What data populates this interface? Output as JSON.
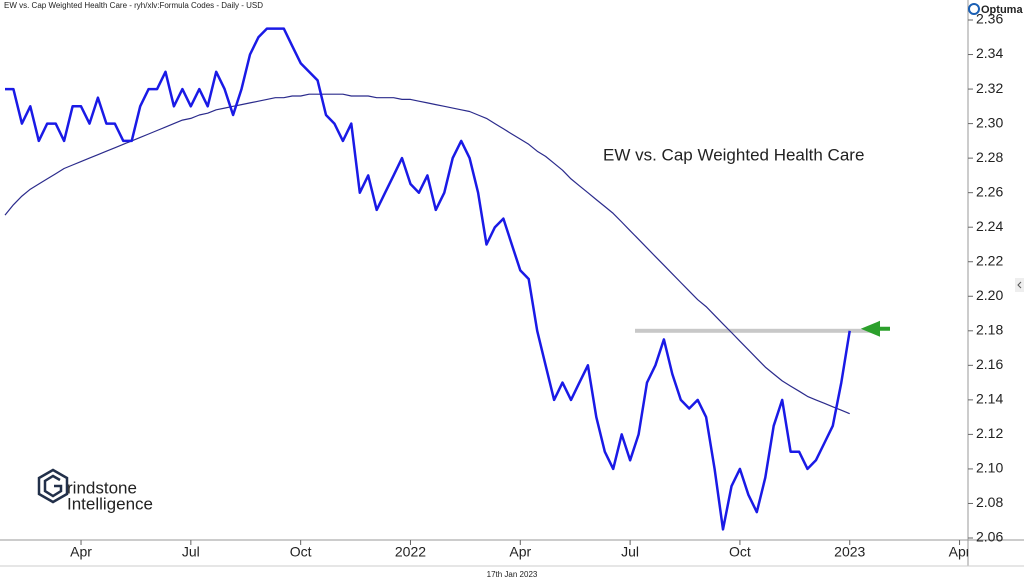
{
  "chart_data": {
    "type": "line",
    "header": "EW vs. Cap Weighted Health Care - ryh/xlv:Formula Codes - Daily - USD",
    "title": "EW vs. Cap Weighted Health Care",
    "footer_date": "17th Jan 2023",
    "brand": "Optuma",
    "watermark": [
      "rindstone",
      "Intelligence"
    ],
    "categories": [
      null,
      null,
      null,
      null,
      null,
      null,
      null,
      null,
      null,
      "Apr",
      null,
      null,
      null,
      null,
      null,
      null,
      null,
      null,
      null,
      null,
      null,
      null,
      "Jul",
      null,
      null,
      null,
      null,
      null,
      null,
      null,
      null,
      null,
      null,
      null,
      null,
      "Oct",
      null,
      null,
      null,
      null,
      null,
      null,
      null,
      null,
      null,
      null,
      null,
      null,
      "2022",
      null,
      null,
      null,
      null,
      null,
      null,
      null,
      null,
      null,
      null,
      null,
      null,
      "Apr",
      null,
      null,
      null,
      null,
      null,
      null,
      null,
      null,
      null,
      null,
      null,
      null,
      "Jul",
      null,
      null,
      null,
      null,
      null,
      null,
      null,
      null,
      null,
      null,
      null,
      null,
      "Oct",
      null,
      null,
      null,
      null,
      null,
      null,
      null,
      null,
      null,
      null,
      null,
      null,
      "2023",
      null,
      null,
      null,
      null,
      null,
      null,
      null,
      null,
      null,
      null,
      null,
      null,
      "Apr",
      null
    ],
    "series": [
      {
        "name": "EW vs. Cap Weighted Health Care",
        "color": "#1a1ae6",
        "values": [
          2.32,
          2.32,
          2.3,
          2.31,
          2.29,
          2.3,
          2.3,
          2.29,
          2.31,
          2.31,
          2.3,
          2.315,
          2.3,
          2.3,
          2.29,
          2.29,
          2.31,
          2.32,
          2.32,
          2.33,
          2.31,
          2.32,
          2.31,
          2.32,
          2.31,
          2.33,
          2.32,
          2.305,
          2.32,
          2.34,
          2.35,
          2.355,
          2.355,
          2.355,
          2.345,
          2.335,
          2.33,
          2.325,
          2.305,
          2.3,
          2.29,
          2.3,
          2.26,
          2.27,
          2.25,
          2.26,
          2.27,
          2.28,
          2.265,
          2.26,
          2.27,
          2.25,
          2.26,
          2.28,
          2.29,
          2.28,
          2.26,
          2.23,
          2.24,
          2.245,
          2.23,
          2.215,
          2.21,
          2.18,
          2.16,
          2.14,
          2.15,
          2.14,
          2.15,
          2.16,
          2.13,
          2.11,
          2.1,
          2.12,
          2.105,
          2.12,
          2.15,
          2.16,
          2.175,
          2.155,
          2.14,
          2.135,
          2.14,
          2.13,
          2.1,
          2.065,
          2.09,
          2.1,
          2.085,
          2.075,
          2.095,
          2.125,
          2.14,
          2.11,
          2.11,
          2.1,
          2.105,
          2.115,
          2.125,
          2.15,
          2.18,
          null,
          null,
          null,
          null,
          null,
          null,
          null,
          null,
          null,
          null,
          null,
          null,
          null,
          null
        ]
      },
      {
        "color": "#2b2b8c",
        "values": [
          2.247,
          2.253,
          2.258,
          2.262,
          2.265,
          2.268,
          2.271,
          2.274,
          2.276,
          2.278,
          2.28,
          2.282,
          2.284,
          2.286,
          2.288,
          2.29,
          2.292,
          2.294,
          2.296,
          2.298,
          2.3,
          2.302,
          2.303,
          2.305,
          2.306,
          2.308,
          2.309,
          2.31,
          2.311,
          2.312,
          2.313,
          2.314,
          2.315,
          2.315,
          2.316,
          2.316,
          2.317,
          2.317,
          2.317,
          2.317,
          2.317,
          2.316,
          2.316,
          2.316,
          2.315,
          2.315,
          2.315,
          2.314,
          2.314,
          2.313,
          2.312,
          2.311,
          2.31,
          2.309,
          2.308,
          2.307,
          2.305,
          2.303,
          2.3,
          2.297,
          2.294,
          2.291,
          2.288,
          2.284,
          2.281,
          2.277,
          2.273,
          2.268,
          2.264,
          2.26,
          2.256,
          2.252,
          2.248,
          2.243,
          2.238,
          2.233,
          2.228,
          2.223,
          2.218,
          2.213,
          2.208,
          2.203,
          2.198,
          2.194,
          2.189,
          2.184,
          2.179,
          2.174,
          2.169,
          2.164,
          2.159,
          2.155,
          2.151,
          2.148,
          2.145,
          2.142,
          2.14,
          2.138,
          2.136,
          2.134,
          2.132,
          null,
          null,
          null,
          null,
          null,
          null,
          null,
          null,
          null,
          null,
          null,
          null,
          null,
          null
        ]
      }
    ],
    "reference_line": {
      "value": 2.18,
      "color": "#c8c8c8"
    },
    "arrow_color": "#2ca02c",
    "ylim": [
      2.06,
      2.36
    ],
    "yticks": [
      2.06,
      2.08,
      {
        "value": 2.1,
        "label": "2.10"
      },
      2.12,
      2.14,
      2.16,
      2.18,
      {
        "value": 2.2,
        "label": "2.20"
      },
      2.22,
      2.24,
      2.26,
      2.28,
      {
        "value": 2.3,
        "label": "2.30"
      },
      2.32,
      2.34,
      2.36
    ],
    "grid": false
  }
}
